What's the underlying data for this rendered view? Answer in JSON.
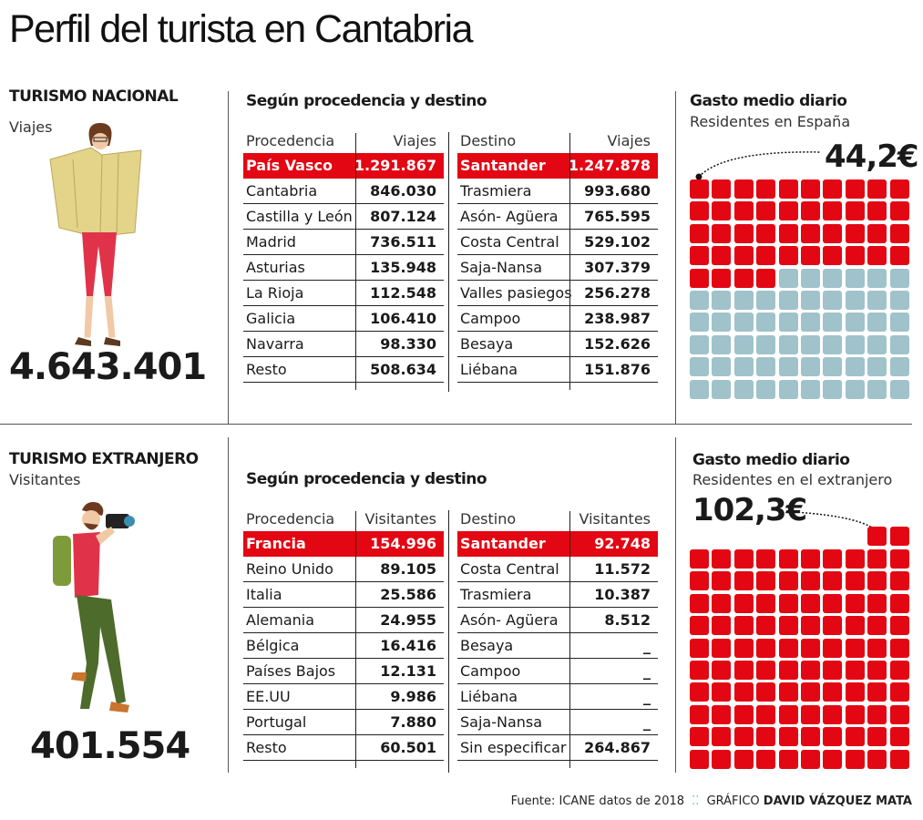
{
  "title": "Perfil del turista en Cantabria",
  "colors": {
    "red": "#e30613",
    "grey": "#9fc2cb"
  },
  "nacional": {
    "title": "TURISMO NACIONAL",
    "subtitle": "Viajes",
    "total": "4.643.401",
    "tables_title": "Según procedencia y destino",
    "procedencia": {
      "headers": [
        "Procedencia",
        "Viajes"
      ],
      "rows": [
        [
          "País Vasco",
          "1.291.867"
        ],
        [
          "Cantabria",
          "846.030"
        ],
        [
          "Castilla y León",
          "807.124"
        ],
        [
          "Madrid",
          "736.511"
        ],
        [
          "Asturias",
          "135.948"
        ],
        [
          "La Rioja",
          "112.548"
        ],
        [
          "Galicia",
          "106.410"
        ],
        [
          "Navarra",
          "98.330"
        ],
        [
          "Resto",
          "508.634"
        ]
      ]
    },
    "destino": {
      "headers": [
        "Destino",
        "Viajes"
      ],
      "rows": [
        [
          "Santander",
          "1.247.878"
        ],
        [
          "Trasmiera",
          "993.680"
        ],
        [
          "Asón- Agüera",
          "765.595"
        ],
        [
          "Costa Central",
          "529.102"
        ],
        [
          "Saja-Nansa",
          "307.379"
        ],
        [
          "Valles pasiegos",
          "256.278"
        ],
        [
          "Campoo",
          "238.987"
        ],
        [
          "Besaya",
          "152.626"
        ],
        [
          "Liébana",
          "151.876"
        ]
      ]
    },
    "gasto": {
      "title": "Gasto medio diario",
      "subtitle": "Residentes en España",
      "value": "44,2€"
    }
  },
  "extranjero": {
    "title": "TURISMO EXTRANJERO",
    "subtitle": "Visitantes",
    "total": "401.554",
    "tables_title": "Según procedencia y destino",
    "procedencia": {
      "headers": [
        "Procedencia",
        "Visitantes"
      ],
      "rows": [
        [
          "Francia",
          "154.996"
        ],
        [
          "Reino Unido",
          "89.105"
        ],
        [
          "Italia",
          "25.586"
        ],
        [
          "Alemania",
          "24.955"
        ],
        [
          "Bélgica",
          "16.416"
        ],
        [
          "Países Bajos",
          "12.131"
        ],
        [
          "EE.UU",
          "9.986"
        ],
        [
          "Portugal",
          "7.880"
        ],
        [
          "Resto",
          "60.501"
        ]
      ]
    },
    "destino": {
      "headers": [
        "Destino",
        "Visitantes"
      ],
      "rows": [
        [
          "Santander",
          "92.748"
        ],
        [
          "Costa Central",
          "11.572"
        ],
        [
          "Trasmiera",
          "10.387"
        ],
        [
          "Asón- Agüera",
          "8.512"
        ],
        [
          "Besaya",
          "_"
        ],
        [
          "Campoo",
          "_"
        ],
        [
          "Liébana",
          "_"
        ],
        [
          "Saja-Nansa",
          "_"
        ],
        [
          "Sin especificar",
          "264.867"
        ]
      ]
    },
    "gasto": {
      "title": "Gasto medio diario",
      "subtitle": "Residentes en el extranjero",
      "value": "102,3€"
    }
  },
  "chart_data": [
    {
      "type": "waffle",
      "title": "Gasto medio diario",
      "subtitle": "Residentes en España",
      "value": 44.2,
      "unit": "€",
      "total_cells": 100,
      "filled_cells": 44
    },
    {
      "type": "waffle",
      "title": "Gasto medio diario",
      "subtitle": "Residentes en el extranjero",
      "value": 102.3,
      "unit": "€",
      "total_cells": 102,
      "filled_cells": 102
    }
  ],
  "footer": {
    "source": "Fuente: ICANE datos de 2018",
    "credit_label": "GRÁFICO",
    "author": "DAVID VÁZQUEZ MATA"
  }
}
